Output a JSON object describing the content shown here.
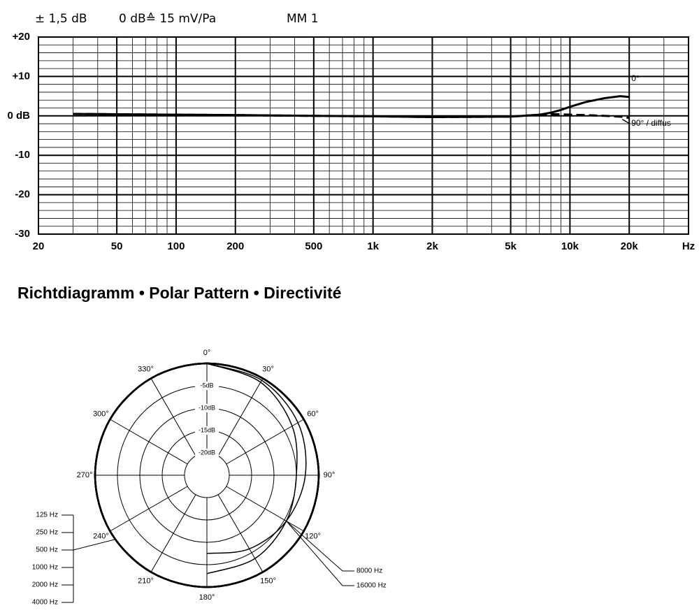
{
  "header": [
    "± 1,5 dB",
    "0 dB≙ 15 mV/Pa",
    "MM 1"
  ],
  "section_title": "Richtdiagramm • Polar Pattern • Directivité",
  "chart_data": [
    {
      "type": "line",
      "x_label": "Hz",
      "xscale": "log",
      "grid": true,
      "xlim": [
        20,
        40000
      ],
      "xticks": [
        20,
        50,
        100,
        200,
        500,
        {
          "value": 1000,
          "label": "1k"
        },
        {
          "value": 2000,
          "label": "2k"
        },
        {
          "value": 5000,
          "label": "5k"
        },
        {
          "value": 10000,
          "label": "10k"
        },
        {
          "value": 20000,
          "label": "20k"
        }
      ],
      "ylim": [
        -30,
        20
      ],
      "yticks": [
        {
          "value": 20,
          "label": "+20"
        },
        {
          "value": 10,
          "label": "+10"
        },
        {
          "value": 0,
          "label": "0 dB"
        },
        -10,
        -20,
        -30
      ],
      "x": [
        30,
        50,
        100,
        200,
        500,
        1000,
        2000,
        5000,
        7000,
        8000,
        9000,
        10000,
        12000,
        15000,
        18000,
        20000
      ],
      "series": [
        {
          "name": "90° / diffus",
          "color": "#000000",
          "dash": true,
          "values": [
            0.5,
            0.4,
            0.3,
            0.2,
            0,
            -0.1,
            -0.3,
            -0.2,
            0.3,
            0.4,
            0.4,
            0.3,
            0.2,
            0,
            -0.2,
            -0.5
          ]
        },
        {
          "name": "0°",
          "color": "#000000",
          "dash": false,
          "values": [
            0.5,
            0.4,
            0.3,
            0.2,
            0,
            -0.1,
            -0.3,
            -0.2,
            0.3,
            0.8,
            1.5,
            2.3,
            3.5,
            4.5,
            5,
            4.8
          ]
        }
      ]
    },
    {
      "type": "polar",
      "rlim": [
        -25,
        0
      ],
      "rticks": [
        {
          "value": -5,
          "label": "-5dB"
        },
        {
          "value": -10,
          "label": "-10dB"
        },
        {
          "value": -15,
          "label": "-15dB"
        },
        {
          "value": -20,
          "label": "-20dB"
        }
      ],
      "theta": [
        {
          "value": 0,
          "label": "0°"
        },
        {
          "value": 30,
          "label": "30°"
        },
        {
          "value": 60,
          "label": "60°"
        },
        {
          "value": 90,
          "label": "90°"
        },
        {
          "value": 120,
          "label": "120°"
        },
        {
          "value": 150,
          "label": "150°"
        },
        {
          "value": 180,
          "label": "180°"
        },
        {
          "value": 210,
          "label": "210°"
        },
        {
          "value": 240,
          "label": "240°"
        },
        {
          "value": 270,
          "label": "270°"
        },
        {
          "value": 300,
          "label": "300°"
        },
        {
          "value": 330,
          "label": "330°"
        }
      ],
      "series": [
        {
          "name": "125 Hz",
          "color": "#000000",
          "values": [
            0,
            0,
            0,
            0,
            0,
            0,
            0,
            0,
            0,
            0,
            0,
            0
          ]
        },
        {
          "name": "250 Hz",
          "color": "#000000",
          "values": [
            0,
            0,
            0,
            0,
            0,
            0,
            0,
            0,
            0,
            0,
            0,
            0
          ]
        },
        {
          "name": "500 Hz",
          "color": "#000000",
          "values": [
            0,
            0,
            0,
            0,
            0,
            0,
            0,
            0,
            0,
            0,
            0,
            0
          ]
        },
        {
          "name": "1000 Hz",
          "color": "#000000",
          "values": [
            0,
            0,
            0,
            0,
            0,
            0,
            0,
            0,
            0,
            0,
            0,
            0
          ]
        },
        {
          "name": "2000 Hz",
          "color": "#000000",
          "values": [
            0,
            0,
            0,
            0,
            0,
            0,
            0,
            0,
            0,
            0,
            0,
            0
          ]
        },
        {
          "name": "4000 Hz",
          "color": "#000000",
          "values": [
            0,
            0,
            0,
            0,
            0,
            0,
            0,
            0,
            0,
            0,
            0,
            0
          ]
        },
        {
          "name": "8000 Hz",
          "color": "#000000",
          "values": [
            0,
            -0.5,
            -1.5,
            -3,
            -4.5,
            -6,
            -7.5,
            null,
            null,
            null,
            null,
            null
          ]
        },
        {
          "name": "16000 Hz",
          "color": "#000000",
          "values": [
            0,
            -1,
            -3,
            -5,
            -4.5,
            -3.5,
            -3,
            null,
            null,
            null,
            null,
            null
          ]
        }
      ]
    }
  ]
}
